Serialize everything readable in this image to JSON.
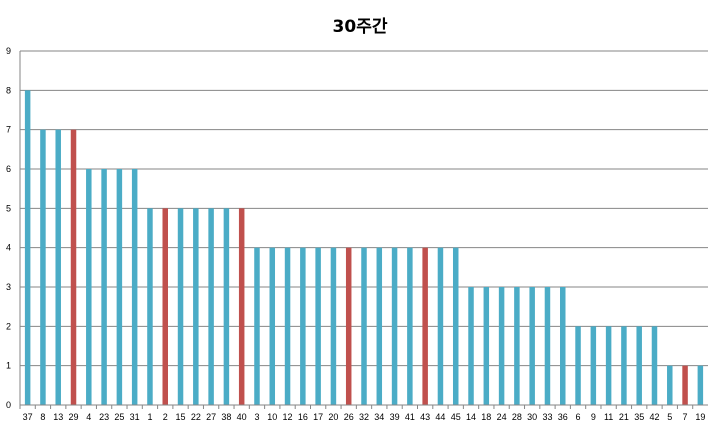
{
  "chart_data": {
    "type": "bar",
    "title": "30주간",
    "xlabel": "",
    "ylabel": "",
    "ylim": [
      0,
      9
    ],
    "yticks": [
      0,
      1,
      2,
      3,
      4,
      5,
      6,
      7,
      8,
      9
    ],
    "grid": true,
    "legend": "none",
    "categories": [
      "37",
      "8",
      "13",
      "29",
      "4",
      "23",
      "25",
      "31",
      "1",
      "2",
      "15",
      "22",
      "27",
      "38",
      "40",
      "3",
      "10",
      "12",
      "16",
      "17",
      "20",
      "26",
      "32",
      "34",
      "39",
      "41",
      "43",
      "44",
      "45",
      "14",
      "18",
      "24",
      "28",
      "30",
      "33",
      "36",
      "6",
      "9",
      "11",
      "21",
      "35",
      "42",
      "5",
      "7",
      "19"
    ],
    "values": [
      8,
      7,
      7,
      7,
      6,
      6,
      6,
      6,
      5,
      5,
      5,
      5,
      5,
      5,
      5,
      4,
      4,
      4,
      4,
      4,
      4,
      4,
      4,
      4,
      4,
      4,
      4,
      4,
      4,
      3,
      3,
      3,
      3,
      3,
      3,
      3,
      2,
      2,
      2,
      2,
      2,
      2,
      1,
      1,
      1
    ],
    "highlighted": [
      "29",
      "2",
      "40",
      "26",
      "43",
      "7"
    ],
    "colors": {
      "default": "#4BACC6",
      "highlight": "#C0504D",
      "grid": "#868686",
      "axis": "#868686"
    }
  }
}
